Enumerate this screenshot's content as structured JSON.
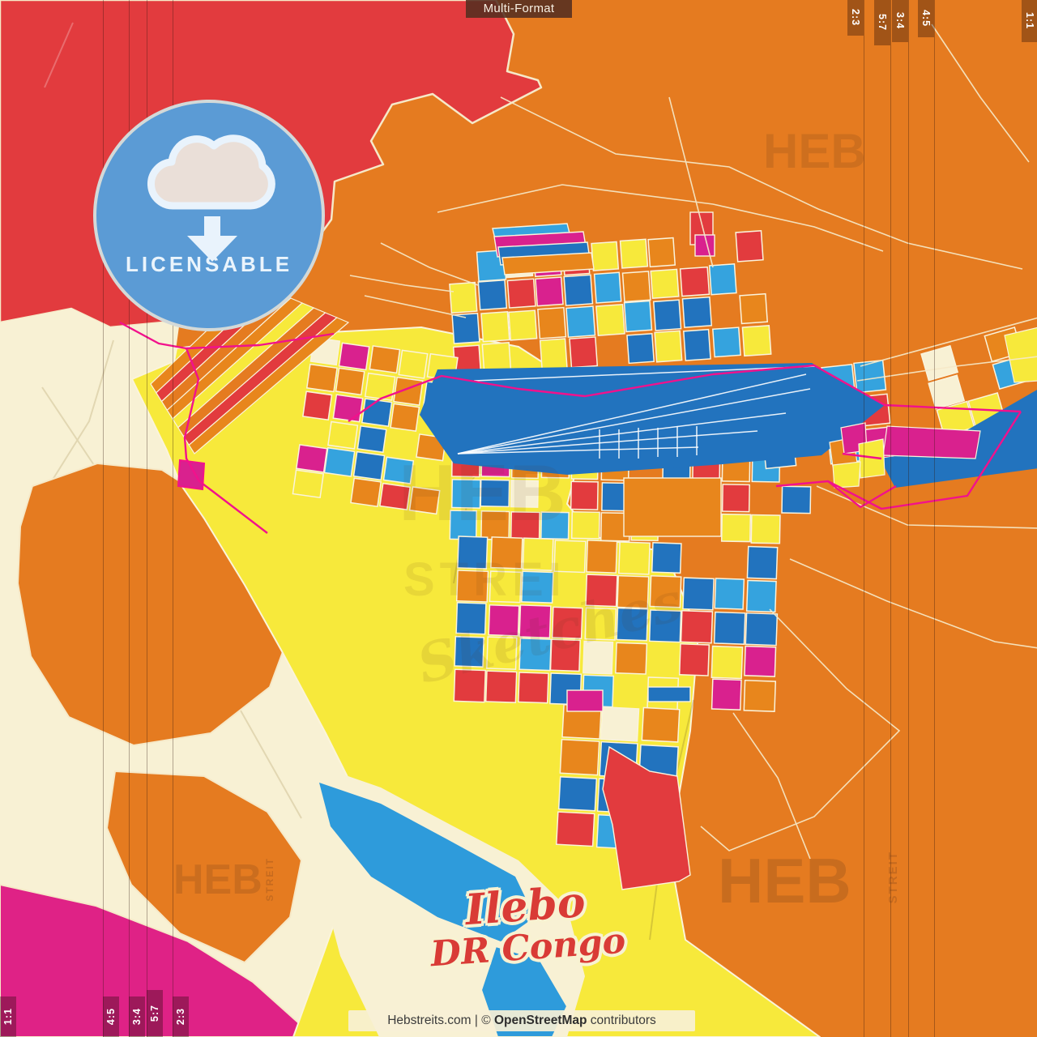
{
  "title_tab": {
    "label": "Multi-Format"
  },
  "ratio_tabs": {
    "top_right": [
      "2:3",
      "5:7",
      "3:4",
      "4:5",
      "1:1"
    ],
    "bottom_left": [
      "4:5",
      "3:4",
      "5:7",
      "2:3",
      "1:1"
    ]
  },
  "badge": {
    "label": "LICENSABLE",
    "icon": "cloud-download-icon"
  },
  "map_labels": {
    "city": "Ilebo",
    "country": "DR Congo"
  },
  "watermarks": {
    "heb": "HEB",
    "strei": "STREI",
    "streit": "STREIT",
    "sketches": "Sketches"
  },
  "footer": {
    "site": "Hebstreits.com",
    "separator": " | © ",
    "osm": "OpenStreetMap",
    "contributors": " contributors"
  },
  "colors": {
    "base_orange": "#E57B20",
    "red": "#E23B3E",
    "cream": "#F8F1D4",
    "yellow": "#F7E93B",
    "magenta": "#DF2286",
    "magenta_parcel": "#D9218E",
    "deep_blue": "#2273BE",
    "azure": "#35A3DE",
    "lake_blue": "#2E9BDB",
    "parcel_orange": "#E8861C",
    "badge_blue": "#5B9BD5",
    "pink_road": "#F2118C",
    "street": "#FAF3DC",
    "watermark": "#5A3219"
  }
}
